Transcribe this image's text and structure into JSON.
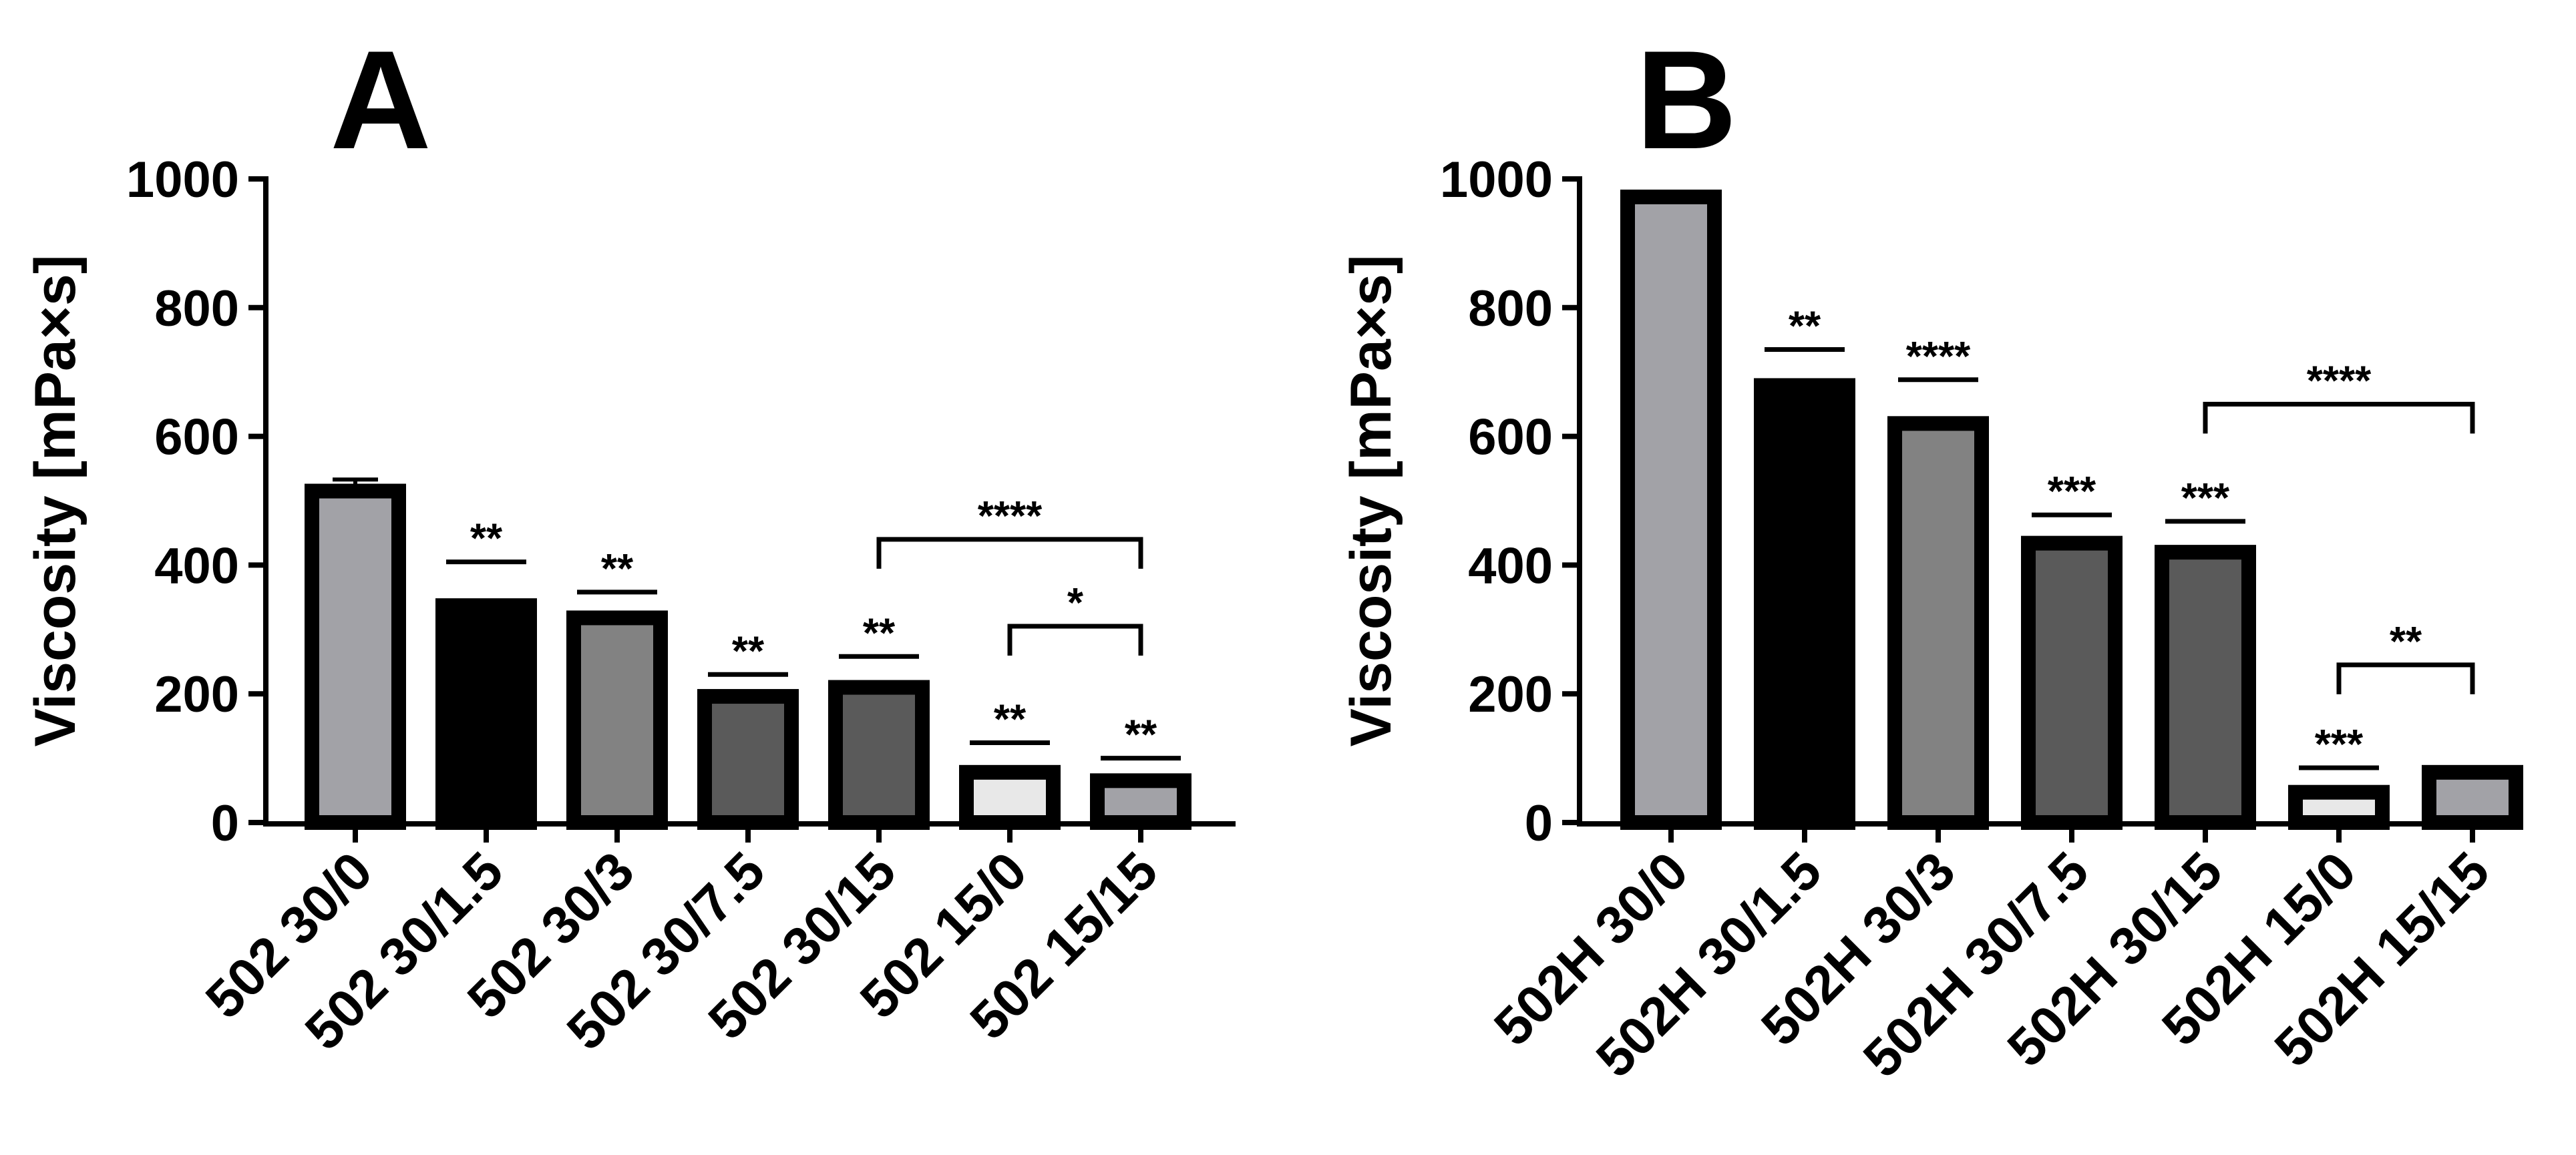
{
  "chart_data": [
    {
      "panel_label": "A",
      "type": "bar",
      "ylabel": "Viscosity [mPa×s]",
      "ylim": [
        0,
        1000
      ],
      "yticks": [
        0,
        200,
        400,
        600,
        800,
        1000
      ],
      "categories": [
        "502 30/0",
        "502 30/1.5",
        "502 30/3",
        "502 30/7.5",
        "502 30/15",
        "502 15/0",
        "502 15/15"
      ],
      "values": [
        515,
        337,
        318,
        196,
        210,
        78,
        65
      ],
      "errors": [
        18,
        3,
        4,
        4,
        4,
        5,
        3
      ],
      "fill_colors": [
        "#a2a2a7",
        "#000000",
        "#828282",
        "#5a5a5a",
        "#5a5a5a",
        "#e8e8e8",
        "#a2a2a7"
      ],
      "significance_single": [
        {
          "bar": 1,
          "text": "**",
          "y": 405
        },
        {
          "bar": 2,
          "text": "**",
          "y": 358
        },
        {
          "bar": 3,
          "text": "**",
          "y": 230
        },
        {
          "bar": 4,
          "text": "**",
          "y": 258
        },
        {
          "bar": 5,
          "text": "**",
          "y": 124
        },
        {
          "bar": 6,
          "text": "**",
          "y": 100
        }
      ],
      "significance_brackets": [
        {
          "from": 4,
          "to": 6,
          "text": "****",
          "y": 440
        },
        {
          "from": 5,
          "to": 6,
          "text": "*",
          "y": 305
        }
      ]
    },
    {
      "panel_label": "B",
      "type": "bar",
      "ylabel": "Viscosity [mPa×s]",
      "ylim": [
        0,
        1000
      ],
      "yticks": [
        0,
        200,
        400,
        600,
        800,
        1000
      ],
      "categories": [
        "502H 30/0",
        "502H 30/1.5",
        "502H 30/3",
        "502H 30/7.5",
        "502H 30/15",
        "502H 15/0",
        "502H 15/15"
      ],
      "values": [
        972,
        679,
        620,
        434,
        420,
        47,
        78
      ],
      "errors": [
        0,
        2,
        8,
        4,
        4,
        2,
        2
      ],
      "fill_colors": [
        "#a2a2a7",
        "#000000",
        "#828282",
        "#5a5a5a",
        "#5a5a5a",
        "#e8e8e8",
        "#a2a2a7"
      ],
      "significance_single": [
        {
          "bar": 1,
          "text": "**",
          "y": 735
        },
        {
          "bar": 2,
          "text": "****",
          "y": 688
        },
        {
          "bar": 3,
          "text": "***",
          "y": 478
        },
        {
          "bar": 4,
          "text": "***",
          "y": 468
        },
        {
          "bar": 5,
          "text": "***",
          "y": 85
        }
      ],
      "significance_brackets": [
        {
          "from": 4,
          "to": 6,
          "text": "****",
          "y": 650
        },
        {
          "from": 5,
          "to": 6,
          "text": "**",
          "y": 245
        }
      ]
    }
  ]
}
